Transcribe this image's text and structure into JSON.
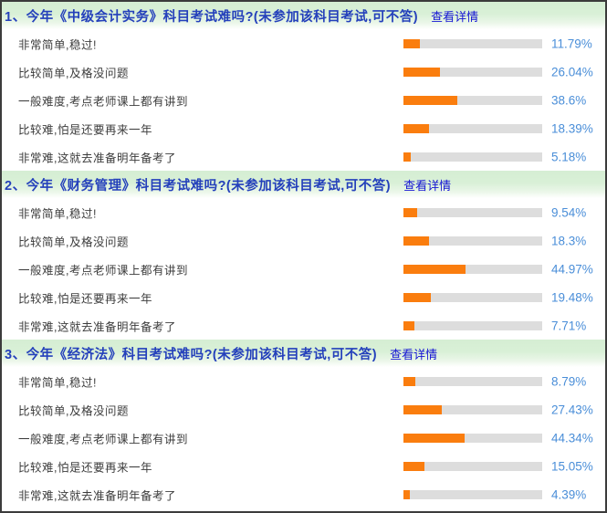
{
  "colors": {
    "bar_orange": "#fa7d0e",
    "track_gray": "#dddddd",
    "percent_blue": "#4a8ed8",
    "header_blue": "#2440bb",
    "link_blue": "#1414d4",
    "header_green": "#d5eed3",
    "panel_border": "#3b3b3b"
  },
  "sections": [
    {
      "title": "1、今年《中级会计实务》科目考试难吗?(未参加该科目考试,可不答)",
      "link_label": "查看详情",
      "rows": [
        {
          "label": "非常简单,稳过!",
          "value": 11.79,
          "display": "11.79%"
        },
        {
          "label": "比较简单,及格没问题",
          "value": 26.04,
          "display": "26.04%"
        },
        {
          "label": "一般难度,考点老师课上都有讲到",
          "value": 38.6,
          "display": "38.6%"
        },
        {
          "label": "比较难,怕是还要再来一年",
          "value": 18.39,
          "display": "18.39%"
        },
        {
          "label": "非常难,这就去准备明年备考了",
          "value": 5.18,
          "display": "5.18%"
        }
      ]
    },
    {
      "title": "2、今年《财务管理》科目考试难吗?(未参加该科目考试,可不答)",
      "link_label": "查看详情",
      "rows": [
        {
          "label": "非常简单,稳过!",
          "value": 9.54,
          "display": "9.54%"
        },
        {
          "label": "比较简单,及格没问题",
          "value": 18.3,
          "display": "18.3%"
        },
        {
          "label": "一般难度,考点老师课上都有讲到",
          "value": 44.97,
          "display": "44.97%"
        },
        {
          "label": "比较难,怕是还要再来一年",
          "value": 19.48,
          "display": "19.48%"
        },
        {
          "label": "非常难,这就去准备明年备考了",
          "value": 7.71,
          "display": "7.71%"
        }
      ]
    },
    {
      "title": "3、今年《经济法》科目考试难吗?(未参加该科目考试,可不答)",
      "link_label": "查看详情",
      "rows": [
        {
          "label": "非常简单,稳过!",
          "value": 8.79,
          "display": "8.79%"
        },
        {
          "label": "比较简单,及格没问题",
          "value": 27.43,
          "display": "27.43%"
        },
        {
          "label": "一般难度,考点老师课上都有讲到",
          "value": 44.34,
          "display": "44.34%"
        },
        {
          "label": "比较难,怕是还要再来一年",
          "value": 15.05,
          "display": "15.05%"
        },
        {
          "label": "非常难,这就去准备明年备考了",
          "value": 4.39,
          "display": "4.39%"
        }
      ]
    }
  ],
  "chart_data": [
    {
      "type": "bar",
      "orientation": "horizontal",
      "title": "1、今年《中级会计实务》科目考试难吗?(未参加该科目考试,可不答)",
      "categories": [
        "非常简单,稳过!",
        "比较简单,及格没问题",
        "一般难度,考点老师课上都有讲到",
        "比较难,怕是还要再来一年",
        "非常难,这就去准备明年备考了"
      ],
      "values": [
        11.79,
        26.04,
        38.6,
        18.39,
        5.18
      ],
      "unit": "%",
      "xlim": [
        0,
        100
      ],
      "grid": false,
      "legend": false
    },
    {
      "type": "bar",
      "orientation": "horizontal",
      "title": "2、今年《财务管理》科目考试难吗?(未参加该科目考试,可不答)",
      "categories": [
        "非常简单,稳过!",
        "比较简单,及格没问题",
        "一般难度,考点老师课上都有讲到",
        "比较难,怕是还要再来一年",
        "非常难,这就去准备明年备考了"
      ],
      "values": [
        9.54,
        18.3,
        44.97,
        19.48,
        7.71
      ],
      "unit": "%",
      "xlim": [
        0,
        100
      ],
      "grid": false,
      "legend": false
    },
    {
      "type": "bar",
      "orientation": "horizontal",
      "title": "3、今年《经济法》科目考试难吗?(未参加该科目考试,可不答)",
      "categories": [
        "非常简单,稳过!",
        "比较简单,及格没问题",
        "一般难度,考点老师课上都有讲到",
        "比较难,怕是还要再来一年",
        "非常难,这就去准备明年备考了"
      ],
      "values": [
        8.79,
        27.43,
        44.34,
        15.05,
        4.39
      ],
      "unit": "%",
      "xlim": [
        0,
        100
      ],
      "grid": false,
      "legend": false
    }
  ]
}
